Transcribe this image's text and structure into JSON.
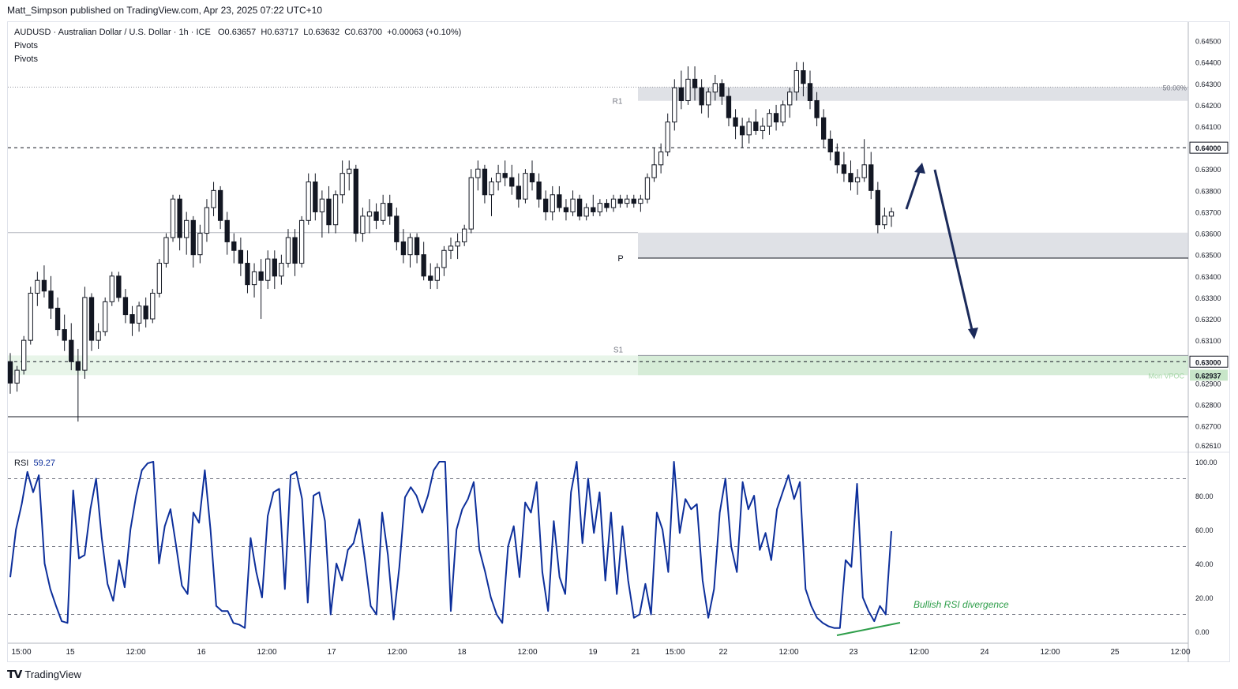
{
  "header": {
    "published_by": "Matt_Simpson published on TradingView.com, Apr 23, 2025 07:22 UTC+10"
  },
  "legend": {
    "symbol_line": "AUDUSD · Australian Dollar / U.S. Dollar · 1h · ICE",
    "open": "O0.63657",
    "high": "H0.63717",
    "low": "L0.63632",
    "close": "C0.63700",
    "change": "+0.00063 (+0.10%)",
    "indicator1": "Pivots",
    "indicator2": "Pivots",
    "rsi_label": "RSI",
    "rsi_value": "59.27"
  },
  "footer": {
    "brand": "TradingView"
  },
  "chart_data": [
    {
      "type": "candlestick",
      "symbol": "AUDUSD",
      "timeframe": "1h",
      "ylim": [
        0.6261,
        0.6455
      ],
      "y_ticks": [
        "0.64500",
        "0.64400",
        "0.64300",
        "0.64200",
        "0.64100",
        "0.64000",
        "0.63900",
        "0.63800",
        "0.63700",
        "0.63600",
        "0.63500",
        "0.63400",
        "0.63300",
        "0.63200",
        "0.63100",
        "0.63000",
        "0.62900",
        "0.62800",
        "0.62700",
        "0.62610"
      ],
      "x_ticks": [
        "15:00",
        "15",
        "12:00",
        "16",
        "12:00",
        "17",
        "12:00",
        "18",
        "12:00",
        "19",
        "21",
        "15:00",
        "22",
        "12:00",
        "23",
        "12:00",
        "24",
        "12:00",
        "25",
        "12:00"
      ],
      "price_labels": [
        {
          "text": "0.64000",
          "value": 0.64,
          "style": "dark"
        },
        {
          "text": "0.63000",
          "value": 0.63,
          "style": "dark"
        },
        {
          "text": "0.62937",
          "value": 0.62937,
          "style": "green"
        }
      ],
      "levels": [
        {
          "label": "R1",
          "value": 0.64219
        },
        {
          "label": "P",
          "value": 0.63484
        },
        {
          "label": "S1",
          "value": 0.63029
        },
        {
          "label": "50.00%",
          "value": 0.64283
        },
        {
          "label": "Mon VPOC",
          "value": 0.62937
        }
      ],
      "zones": [
        {
          "name": "r1-zone",
          "from": 0.64219,
          "to": 0.64283,
          "color": "#d1d4dc"
        },
        {
          "name": "pivot-zone",
          "from": 0.63484,
          "to": 0.63603,
          "color": "#d1d4dc"
        },
        {
          "name": "vpoc-zone",
          "from": 0.62937,
          "to": 0.63029,
          "color": "#c8e6c9"
        }
      ],
      "hlines": [
        {
          "value": 0.64,
          "style": "dashed"
        },
        {
          "value": 0.63,
          "style": "dashed"
        },
        {
          "value": 0.63603,
          "style": "solid-thin"
        },
        {
          "value": 0.62743,
          "style": "solid"
        }
      ],
      "ohlc": [
        [
          0.63,
          0.6304,
          0.6285,
          0.629
        ],
        [
          0.629,
          0.6298,
          0.6286,
          0.6296
        ],
        [
          0.6296,
          0.6312,
          0.6294,
          0.631
        ],
        [
          0.631,
          0.6335,
          0.6308,
          0.6332
        ],
        [
          0.6332,
          0.6342,
          0.6326,
          0.6338
        ],
        [
          0.6338,
          0.6345,
          0.633,
          0.6333
        ],
        [
          0.6333,
          0.634,
          0.632,
          0.6325
        ],
        [
          0.6325,
          0.633,
          0.6312,
          0.6315
        ],
        [
          0.6315,
          0.6322,
          0.6305,
          0.631
        ],
        [
          0.631,
          0.6318,
          0.6296,
          0.63
        ],
        [
          0.63,
          0.6306,
          0.6272,
          0.6296
        ],
        [
          0.6296,
          0.6335,
          0.6292,
          0.633
        ],
        [
          0.633,
          0.6332,
          0.6305,
          0.631
        ],
        [
          0.631,
          0.6318,
          0.6306,
          0.6314
        ],
        [
          0.6314,
          0.633,
          0.6312,
          0.6328
        ],
        [
          0.6328,
          0.6342,
          0.6326,
          0.634
        ],
        [
          0.634,
          0.6342,
          0.6328,
          0.633
        ],
        [
          0.633,
          0.6334,
          0.6318,
          0.6322
        ],
        [
          0.6322,
          0.6326,
          0.6312,
          0.6318
        ],
        [
          0.6318,
          0.6328,
          0.6314,
          0.6326
        ],
        [
          0.6326,
          0.633,
          0.6316,
          0.632
        ],
        [
          0.632,
          0.6334,
          0.6318,
          0.6332
        ],
        [
          0.6332,
          0.6348,
          0.633,
          0.6346
        ],
        [
          0.6346,
          0.636,
          0.6344,
          0.6358
        ],
        [
          0.6358,
          0.6378,
          0.6356,
          0.6376
        ],
        [
          0.6376,
          0.6378,
          0.6352,
          0.6358
        ],
        [
          0.6358,
          0.637,
          0.635,
          0.6366
        ],
        [
          0.6366,
          0.6368,
          0.6344,
          0.635
        ],
        [
          0.635,
          0.6364,
          0.6346,
          0.636
        ],
        [
          0.636,
          0.6376,
          0.6356,
          0.6372
        ],
        [
          0.6372,
          0.6384,
          0.6368,
          0.638
        ],
        [
          0.638,
          0.6382,
          0.6362,
          0.6366
        ],
        [
          0.6366,
          0.637,
          0.635,
          0.6356
        ],
        [
          0.6356,
          0.636,
          0.6346,
          0.6352
        ],
        [
          0.6352,
          0.6358,
          0.634,
          0.6346
        ],
        [
          0.6346,
          0.6352,
          0.6332,
          0.6336
        ],
        [
          0.6336,
          0.6346,
          0.633,
          0.6342
        ],
        [
          0.6342,
          0.6348,
          0.632,
          0.6338
        ],
        [
          0.6338,
          0.6352,
          0.6334,
          0.6348
        ],
        [
          0.6348,
          0.6352,
          0.6334,
          0.634
        ],
        [
          0.634,
          0.635,
          0.6336,
          0.6346
        ],
        [
          0.6346,
          0.6362,
          0.6344,
          0.6358
        ],
        [
          0.6358,
          0.6362,
          0.634,
          0.6346
        ],
        [
          0.6346,
          0.6368,
          0.6344,
          0.6366
        ],
        [
          0.6366,
          0.6388,
          0.6364,
          0.6384
        ],
        [
          0.6384,
          0.6388,
          0.6366,
          0.637
        ],
        [
          0.637,
          0.638,
          0.6358,
          0.6376
        ],
        [
          0.6376,
          0.6382,
          0.636,
          0.6364
        ],
        [
          0.6364,
          0.638,
          0.636,
          0.6378
        ],
        [
          0.6378,
          0.6394,
          0.6374,
          0.6388
        ],
        [
          0.6388,
          0.6394,
          0.638,
          0.639
        ],
        [
          0.639,
          0.6392,
          0.6356,
          0.636
        ],
        [
          0.636,
          0.6372,
          0.6356,
          0.6368
        ],
        [
          0.6368,
          0.6376,
          0.636,
          0.637
        ],
        [
          0.637,
          0.6374,
          0.6362,
          0.6366
        ],
        [
          0.6366,
          0.6378,
          0.6364,
          0.6374
        ],
        [
          0.6374,
          0.6378,
          0.6364,
          0.6368
        ],
        [
          0.6368,
          0.6372,
          0.6352,
          0.6356
        ],
        [
          0.6356,
          0.6362,
          0.6346,
          0.635
        ],
        [
          0.635,
          0.636,
          0.6344,
          0.6358
        ],
        [
          0.6358,
          0.636,
          0.6346,
          0.635
        ],
        [
          0.635,
          0.6356,
          0.6338,
          0.634
        ],
        [
          0.634,
          0.6346,
          0.6334,
          0.6338
        ],
        [
          0.6338,
          0.6346,
          0.6334,
          0.6344
        ],
        [
          0.6344,
          0.6354,
          0.634,
          0.6352
        ],
        [
          0.6352,
          0.6358,
          0.6348,
          0.6354
        ],
        [
          0.6354,
          0.636,
          0.6348,
          0.6356
        ],
        [
          0.6356,
          0.6364,
          0.6354,
          0.6362
        ],
        [
          0.6362,
          0.639,
          0.636,
          0.6386
        ],
        [
          0.6386,
          0.6394,
          0.638,
          0.639
        ],
        [
          0.639,
          0.6392,
          0.6374,
          0.6378
        ],
        [
          0.6378,
          0.6386,
          0.6368,
          0.6384
        ],
        [
          0.6384,
          0.6392,
          0.638,
          0.6388
        ],
        [
          0.6388,
          0.6394,
          0.6382,
          0.6386
        ],
        [
          0.6386,
          0.6392,
          0.6378,
          0.6382
        ],
        [
          0.6382,
          0.6388,
          0.6372,
          0.6376
        ],
        [
          0.6376,
          0.639,
          0.6374,
          0.6388
        ],
        [
          0.6388,
          0.6394,
          0.638,
          0.6384
        ],
        [
          0.6384,
          0.6388,
          0.6372,
          0.6376
        ],
        [
          0.6376,
          0.638,
          0.6366,
          0.637
        ],
        [
          0.637,
          0.6382,
          0.6366,
          0.6378
        ],
        [
          0.6378,
          0.6382,
          0.637,
          0.6372
        ],
        [
          0.6372,
          0.6376,
          0.6366,
          0.637
        ],
        [
          0.637,
          0.638,
          0.6368,
          0.6376
        ],
        [
          0.6376,
          0.6378,
          0.6366,
          0.6368
        ],
        [
          0.6368,
          0.6374,
          0.6366,
          0.6372
        ],
        [
          0.6372,
          0.6378,
          0.6368,
          0.637
        ],
        [
          0.637,
          0.6376,
          0.6368,
          0.6374
        ],
        [
          0.6374,
          0.6376,
          0.637,
          0.6372
        ],
        [
          0.6372,
          0.6378,
          0.637,
          0.6376
        ],
        [
          0.6376,
          0.6378,
          0.6372,
          0.6374
        ],
        [
          0.6374,
          0.6378,
          0.6372,
          0.6376
        ],
        [
          0.6376,
          0.6378,
          0.6372,
          0.6374
        ],
        [
          0.6374,
          0.6378,
          0.637,
          0.6376
        ],
        [
          0.6376,
          0.6388,
          0.6374,
          0.6386
        ],
        [
          0.6386,
          0.64,
          0.6384,
          0.6392
        ],
        [
          0.6392,
          0.6402,
          0.6388,
          0.6398
        ],
        [
          0.6398,
          0.6416,
          0.6396,
          0.6412
        ],
        [
          0.6412,
          0.6432,
          0.6408,
          0.6428
        ],
        [
          0.6428,
          0.6436,
          0.6418,
          0.6422
        ],
        [
          0.6422,
          0.6438,
          0.642,
          0.6432
        ],
        [
          0.6432,
          0.6438,
          0.6422,
          0.6428
        ],
        [
          0.6428,
          0.6432,
          0.6416,
          0.642
        ],
        [
          0.642,
          0.6428,
          0.6414,
          0.6426
        ],
        [
          0.6426,
          0.6434,
          0.6422,
          0.643
        ],
        [
          0.643,
          0.6432,
          0.642,
          0.6424
        ],
        [
          0.6424,
          0.6428,
          0.641,
          0.6414
        ],
        [
          0.6414,
          0.6418,
          0.6404,
          0.641
        ],
        [
          0.641,
          0.6414,
          0.64,
          0.6406
        ],
        [
          0.6406,
          0.6414,
          0.6402,
          0.6412
        ],
        [
          0.6412,
          0.6418,
          0.6406,
          0.6408
        ],
        [
          0.6408,
          0.6414,
          0.6404,
          0.641
        ],
        [
          0.641,
          0.6418,
          0.6406,
          0.6416
        ],
        [
          0.6416,
          0.642,
          0.6408,
          0.6412
        ],
        [
          0.6412,
          0.6422,
          0.641,
          0.642
        ],
        [
          0.642,
          0.6428,
          0.6414,
          0.6426
        ],
        [
          0.6426,
          0.644,
          0.6422,
          0.6436
        ],
        [
          0.6436,
          0.644,
          0.6424,
          0.643
        ],
        [
          0.643,
          0.6436,
          0.6418,
          0.6422
        ],
        [
          0.6422,
          0.6426,
          0.641,
          0.6414
        ],
        [
          0.6414,
          0.6418,
          0.64,
          0.6404
        ],
        [
          0.6404,
          0.6408,
          0.6394,
          0.6398
        ],
        [
          0.6398,
          0.6402,
          0.6388,
          0.6392
        ],
        [
          0.6392,
          0.6398,
          0.6384,
          0.6388
        ],
        [
          0.6388,
          0.6394,
          0.638,
          0.6384
        ],
        [
          0.6384,
          0.639,
          0.6378,
          0.6386
        ],
        [
          0.6386,
          0.6404,
          0.6384,
          0.6392
        ],
        [
          0.6392,
          0.6398,
          0.6376,
          0.638
        ],
        [
          0.638,
          0.6384,
          0.636,
          0.6364
        ],
        [
          0.6364,
          0.6372,
          0.6362,
          0.6368
        ],
        [
          0.6368,
          0.6372,
          0.6363,
          0.637
        ]
      ]
    },
    {
      "type": "line",
      "name": "RSI",
      "ylim": [
        0,
        100
      ],
      "y_ticks": [
        "100.00",
        "80.00",
        "60.00",
        "40.00",
        "20.00",
        "0.00"
      ],
      "bands": [
        90,
        50,
        10
      ],
      "values": [
        32,
        60,
        75,
        94,
        82,
        92,
        40,
        25,
        15,
        6,
        5,
        83,
        43,
        45,
        72,
        90,
        55,
        28,
        18,
        42,
        26,
        60,
        80,
        95,
        99,
        100,
        40,
        62,
        72,
        50,
        27,
        22,
        70,
        64,
        95,
        60,
        15,
        12,
        12,
        5,
        4,
        2,
        55,
        35,
        20,
        68,
        82,
        84,
        25,
        92,
        94,
        78,
        17,
        80,
        82,
        65,
        10,
        40,
        30,
        48,
        52,
        66,
        42,
        15,
        10,
        70,
        45,
        7,
        38,
        79,
        85,
        80,
        70,
        80,
        95,
        100,
        100,
        12,
        60,
        72,
        78,
        88,
        48,
        35,
        20,
        10,
        5,
        50,
        62,
        32,
        76,
        70,
        88,
        35,
        12,
        65,
        32,
        22,
        82,
        100,
        52,
        90,
        58,
        82,
        30,
        70,
        22,
        62,
        30,
        8,
        10,
        28,
        10,
        70,
        60,
        35,
        100,
        58,
        78,
        72,
        75,
        30,
        8,
        25,
        70,
        90,
        50,
        35,
        88,
        72,
        80,
        48,
        58,
        42,
        72,
        82,
        92,
        78,
        88,
        25,
        15,
        8,
        5,
        3,
        2,
        2,
        42,
        38,
        87,
        20,
        12,
        6,
        15,
        10,
        59
      ]
    }
  ],
  "annotations": {
    "divergence_text": "Bullish RSI divergence",
    "level_r1": "R1",
    "level_p": "P",
    "level_s1": "S1",
    "fib_label": "50.00%",
    "vpoc_label": "Mon VPOC"
  },
  "colors": {
    "candle_up": "#ffffff",
    "candle_down": "#131722",
    "rsi_line": "#0d2f9b",
    "arrow": "#1b2a5a",
    "divergence": "#2e9e4a"
  }
}
